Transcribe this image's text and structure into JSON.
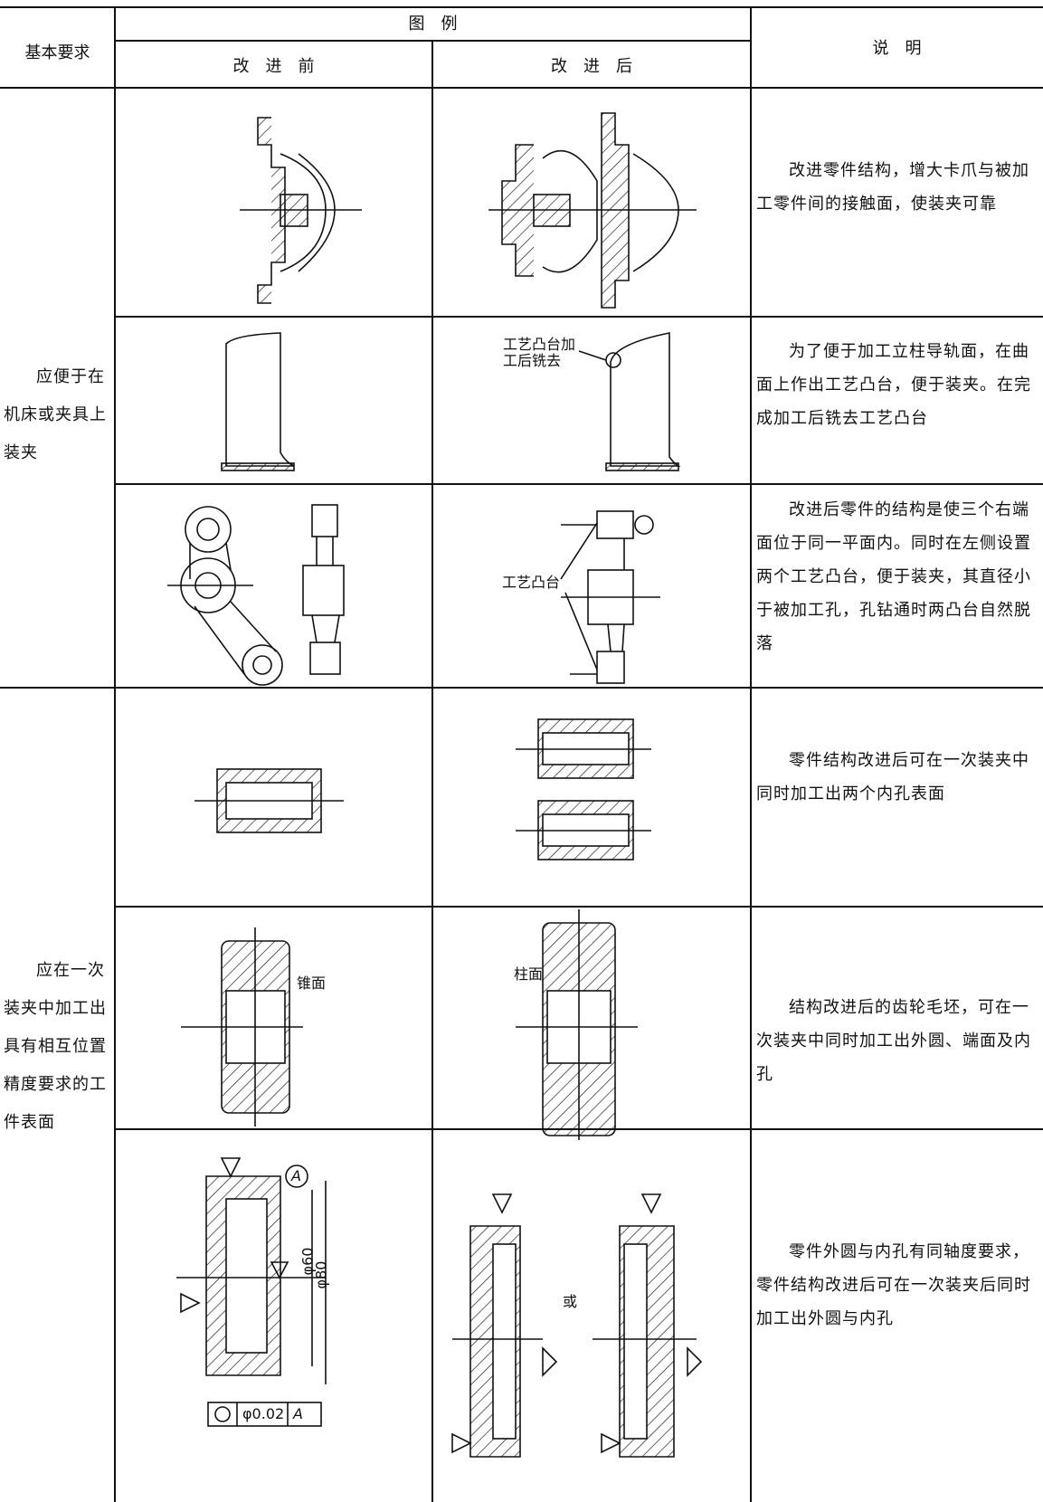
{
  "header": {
    "requirement": "基本要求",
    "illustration": "图　例",
    "before": "改　进　前",
    "after": "改　进　后",
    "note": "说　明"
  },
  "groups": [
    {
      "requirement": "应便于在机床或夹具上装夹",
      "rows": [
        {
          "note": "改进零件结构，增大卡爪与被加工零件间的接触面，使装夹可靠"
        },
        {
          "after_labels": [
            "工艺凸台加工后铣去"
          ],
          "note": "为了便于加工立柱导轨面，在曲面上作出工艺凸台，便于装夹。在完成加工后铣去工艺凸台"
        },
        {
          "after_labels": [
            "工艺凸台"
          ],
          "note": "改进后零件的结构是使三个右端面位于同一平面内。同时在左侧设置两个工艺凸台，便于装夹，其直径小于被加工孔，孔钻通时两凸台自然脱落"
        }
      ]
    },
    {
      "requirement": "应在一次装夹中加工出具有相互位置精度要求的工件表面",
      "rows": [
        {
          "note": "零件结构改进后可在一次装夹中同时加工出两个内孔表面"
        },
        {
          "before_labels": [
            "锥面"
          ],
          "after_labels": [
            "柱面"
          ],
          "note": "结构改进后的齿轮毛坯，可在一次装夹中同时加工出外圆、端面及内孔"
        },
        {
          "before_labels": [
            "φ60",
            "φ80",
            "A",
            "φ0.02",
            "A"
          ],
          "after_labels": [
            "或"
          ],
          "note": "零件外圆与内孔有同轴度要求，零件结构改进后可在一次装夹后同时加工出外圆与内孔"
        }
      ]
    }
  ]
}
